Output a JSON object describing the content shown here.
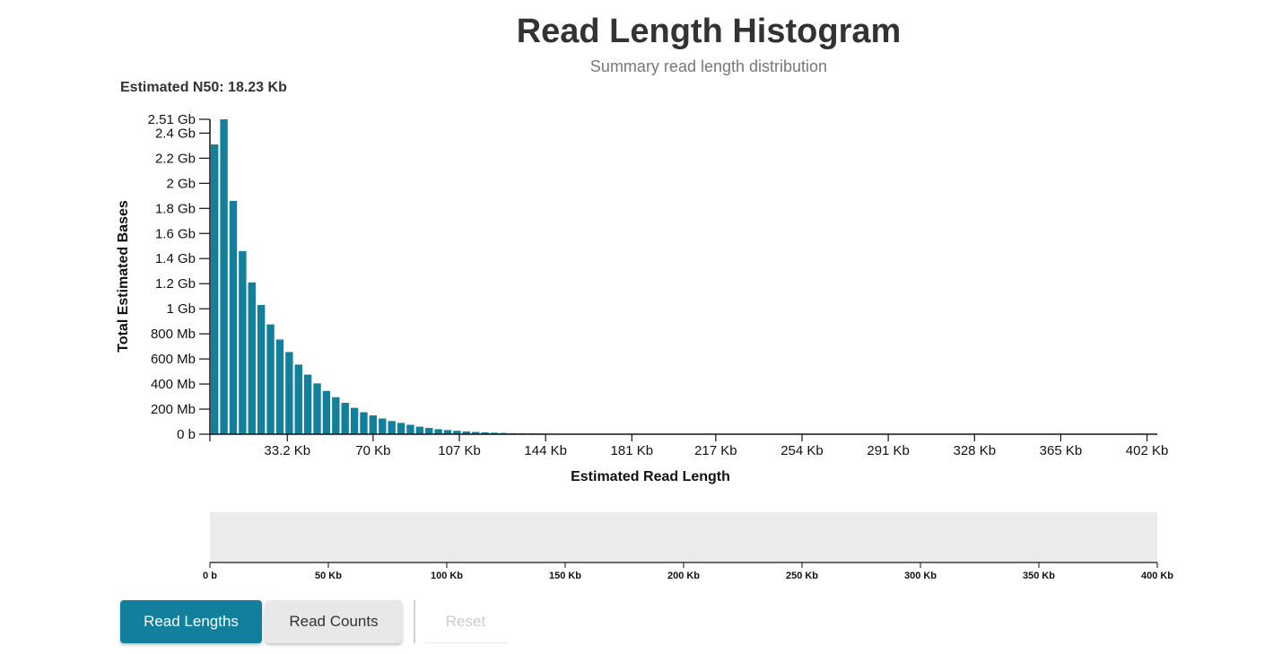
{
  "header": {
    "title": "Read Length Histogram",
    "subtitle": "Summary read length distribution",
    "n50_label": "Estimated N50: 18.23 Kb"
  },
  "colors": {
    "bar": "#12809c",
    "brush_bg": "#ebebeb",
    "button_active": "#12809c",
    "button_inactive": "#e8e8e8"
  },
  "controls": {
    "read_lengths": "Read Lengths",
    "read_counts": "Read Counts",
    "reset": "Reset"
  },
  "chart_data": {
    "type": "bar",
    "title": "Read Length Histogram",
    "subtitle": "Summary read length distribution",
    "xlabel": "Estimated Read Length",
    "ylabel": "Total Estimated Bases",
    "x_unit": "Kb",
    "y_unit": "Gb",
    "xlim": [
      0,
      406.4
    ],
    "ylim": [
      0,
      2.51
    ],
    "bin_width": 4,
    "x": [
      0,
      4,
      8,
      12,
      16,
      20,
      24,
      28,
      32,
      36,
      40,
      44,
      48,
      52,
      56,
      60,
      64,
      68,
      72,
      76,
      80,
      84,
      88,
      92,
      96,
      100,
      104,
      108,
      112,
      116,
      120,
      124,
      128,
      132,
      136,
      140
    ],
    "values": [
      2.31,
      2.51,
      1.86,
      1.46,
      1.21,
      1.03,
      0.875,
      0.755,
      0.655,
      0.555,
      0.475,
      0.405,
      0.345,
      0.295,
      0.25,
      0.21,
      0.175,
      0.15,
      0.125,
      0.105,
      0.09,
      0.075,
      0.06,
      0.05,
      0.04,
      0.033,
      0.027,
      0.022,
      0.018,
      0.015,
      0.012,
      0.01,
      0.008,
      0.007,
      0.006,
      0.005
    ],
    "y_ticks": [
      {
        "value": 0,
        "label": "0 b"
      },
      {
        "value": 0.2,
        "label": "200 Mb"
      },
      {
        "value": 0.4,
        "label": "400 Mb"
      },
      {
        "value": 0.6,
        "label": "600 Mb"
      },
      {
        "value": 0.8,
        "label": "800 Mb"
      },
      {
        "value": 1.0,
        "label": "1 Gb"
      },
      {
        "value": 1.2,
        "label": "1.2 Gb"
      },
      {
        "value": 1.4,
        "label": "1.4 Gb"
      },
      {
        "value": 1.6,
        "label": "1.6 Gb"
      },
      {
        "value": 1.8,
        "label": "1.8 Gb"
      },
      {
        "value": 2.0,
        "label": "2 Gb"
      },
      {
        "value": 2.2,
        "label": "2.2 Gb"
      },
      {
        "value": 2.4,
        "label": "2.4 Gb"
      },
      {
        "value": 2.51,
        "label": "2.51 Gb"
      }
    ],
    "x_ticks": [
      {
        "value": 33.2,
        "label": "33.2 Kb"
      },
      {
        "value": 70,
        "label": "70 Kb"
      },
      {
        "value": 107,
        "label": "107 Kb"
      },
      {
        "value": 144,
        "label": "144 Kb"
      },
      {
        "value": 181,
        "label": "181 Kb"
      },
      {
        "value": 217,
        "label": "217 Kb"
      },
      {
        "value": 254,
        "label": "254 Kb"
      },
      {
        "value": 291,
        "label": "291 Kb"
      },
      {
        "value": 328,
        "label": "328 Kb"
      },
      {
        "value": 365,
        "label": "365 Kb"
      },
      {
        "value": 402,
        "label": "402 Kb"
      }
    ],
    "brush_axis": {
      "xlim": [
        0,
        400
      ],
      "ticks": [
        {
          "value": 0,
          "label": "0 b"
        },
        {
          "value": 50,
          "label": "50 Kb"
        },
        {
          "value": 100,
          "label": "100 Kb"
        },
        {
          "value": 150,
          "label": "150 Kb"
        },
        {
          "value": 200,
          "label": "200 Kb"
        },
        {
          "value": 250,
          "label": "250 Kb"
        },
        {
          "value": 300,
          "label": "300 Kb"
        },
        {
          "value": 350,
          "label": "350 Kb"
        },
        {
          "value": 400,
          "label": "400 Kb"
        }
      ]
    }
  }
}
